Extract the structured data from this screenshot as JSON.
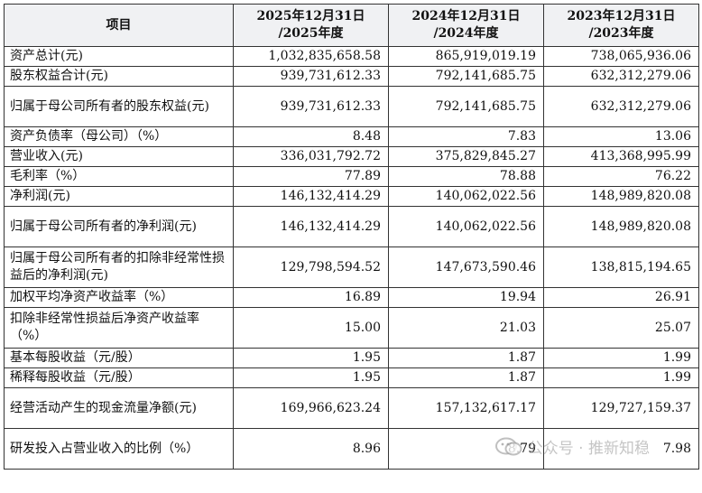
{
  "header": {
    "item": "项目",
    "col1": "2025年12月31日\n/2025年度",
    "col2": "2024年12月31日\n/2024年度",
    "col3": "2023年12月31日\n/2023年度"
  },
  "rows": [
    {
      "label": "资产总计(元)",
      "v1": "1,032,835,658.58",
      "v2": "865,919,019.19",
      "v3": "738,065,936.06"
    },
    {
      "label": "股东权益合计(元)",
      "v1": "939,731,612.33",
      "v2": "792,141,685.75",
      "v3": "632,312,279.06"
    },
    {
      "label": "归属于母公司所有者的股东权益(元)",
      "v1": "939,731,612.33",
      "v2": "792,141,685.75",
      "v3": "632,312,279.06"
    },
    {
      "label": "资产负债率（母公司）（%）",
      "v1": "8.48",
      "v2": "7.83",
      "v3": "13.06"
    },
    {
      "label": "营业收入(元)",
      "v1": "336,031,792.72",
      "v2": "375,829,845.27",
      "v3": "413,368,995.99"
    },
    {
      "label": "毛利率（%）",
      "v1": "77.89",
      "v2": "78.88",
      "v3": "76.22"
    },
    {
      "label": "净利润(元)",
      "v1": "146,132,414.29",
      "v2": "140,062,022.56",
      "v3": "148,989,820.08"
    },
    {
      "label": "归属于母公司所有者的净利润(元)",
      "v1": "146,132,414.29",
      "v2": "140,062,022.56",
      "v3": "148,989,820.08"
    },
    {
      "label": "归属于母公司所有者的扣除非经常性损益后的净利润(元)",
      "v1": "129,798,594.52",
      "v2": "147,673,590.46",
      "v3": "138,815,194.65"
    },
    {
      "label": "加权平均净资产收益率（%）",
      "v1": "16.89",
      "v2": "19.94",
      "v3": "26.91"
    },
    {
      "label": "扣除非经常性损益后净资产收益率（%）",
      "v1": "15.00",
      "v2": "21.03",
      "v3": "25.07"
    },
    {
      "label": "基本每股收益（元/股）",
      "v1": "1.95",
      "v2": "1.87",
      "v3": "1.99"
    },
    {
      "label": "稀释每股收益（元/股）",
      "v1": "1.95",
      "v2": "1.87",
      "v3": "1.99"
    },
    {
      "label": "经营活动产生的现金流量净额(元)",
      "v1": "169,966,623.24",
      "v2": "157,132,617.17",
      "v3": "129,727,159.37"
    },
    {
      "label": "研发投入占营业收入的比例（%）",
      "v1": "8.96",
      "v2": "8.79",
      "v3": "7.98"
    }
  ],
  "watermark": {
    "text": "公众号 · 推新知稳",
    "icon": "wechat-official-account-icon"
  }
}
